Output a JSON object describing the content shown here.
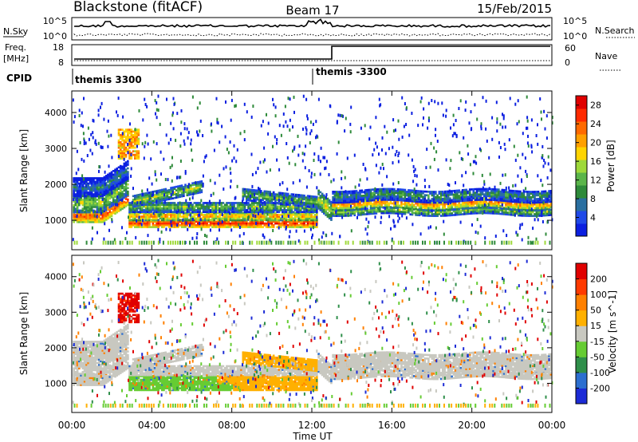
{
  "header": {
    "station": "Blackstone (fitACF)",
    "beam": "Beam 17",
    "date": "15/Feb/2015"
  },
  "summary_panels": {
    "nsky_label": "N.Sky",
    "nsky_ticks": [
      "10^5",
      "10^0"
    ],
    "nsearch_label": "N.Search",
    "nsearch_ticks": [
      "10^5",
      "10^0"
    ],
    "freq_label": "Freq.",
    "freq_unit": "[MHz]",
    "freq_ticks": [
      "18",
      "8"
    ],
    "nave_label": "Nave",
    "nave_ticks": [
      "60",
      "0"
    ],
    "cpid_label": "CPID",
    "cpid_segments": [
      "themis 3300",
      "themis -3300"
    ]
  },
  "chart_data": [
    {
      "type": "heatmap",
      "title": "",
      "xlabel": "Time UT",
      "ylabel": "Slant Range [km]",
      "x_ticks": [
        "00:00",
        "04:00",
        "08:00",
        "12:00",
        "16:00",
        "20:00",
        "00:00"
      ],
      "x_range_hours": [
        0,
        24
      ],
      "y_ticks": [
        1000,
        2000,
        3000,
        4000
      ],
      "y_range_km": [
        180,
        4600
      ],
      "colorbar": {
        "label": "Power [dB]",
        "ticks": [
          4,
          8,
          12,
          16,
          20,
          24,
          28
        ],
        "range": [
          0,
          30
        ],
        "colors": [
          "#0b1fe0",
          "#1f49e8",
          "#2a6fa0",
          "#2e8a3a",
          "#5ab54a",
          "#9ed93a",
          "#ffd400",
          "#ffa000",
          "#ff6a00",
          "#ff2a00",
          "#e00000"
        ]
      }
    },
    {
      "type": "heatmap",
      "title": "",
      "xlabel": "Time UT",
      "ylabel": "Slant Range [km]",
      "x_ticks": [
        "00:00",
        "04:00",
        "08:00",
        "12:00",
        "16:00",
        "20:00",
        "00:00"
      ],
      "x_range_hours": [
        0,
        24
      ],
      "y_ticks": [
        1000,
        2000,
        3000,
        4000
      ],
      "y_range_km": [
        180,
        4600
      ],
      "colorbar": {
        "label": "Velocity [m s^-1]",
        "ticks": [
          200,
          100,
          50,
          15,
          -15,
          -50,
          -100,
          -200
        ],
        "colors": [
          "#1c2bd6",
          "#2c6fd0",
          "#2f8f4a",
          "#66cc33",
          "#c8c8c0",
          "#ffb000",
          "#ff8000",
          "#ff3a00",
          "#e00000"
        ]
      }
    }
  ]
}
